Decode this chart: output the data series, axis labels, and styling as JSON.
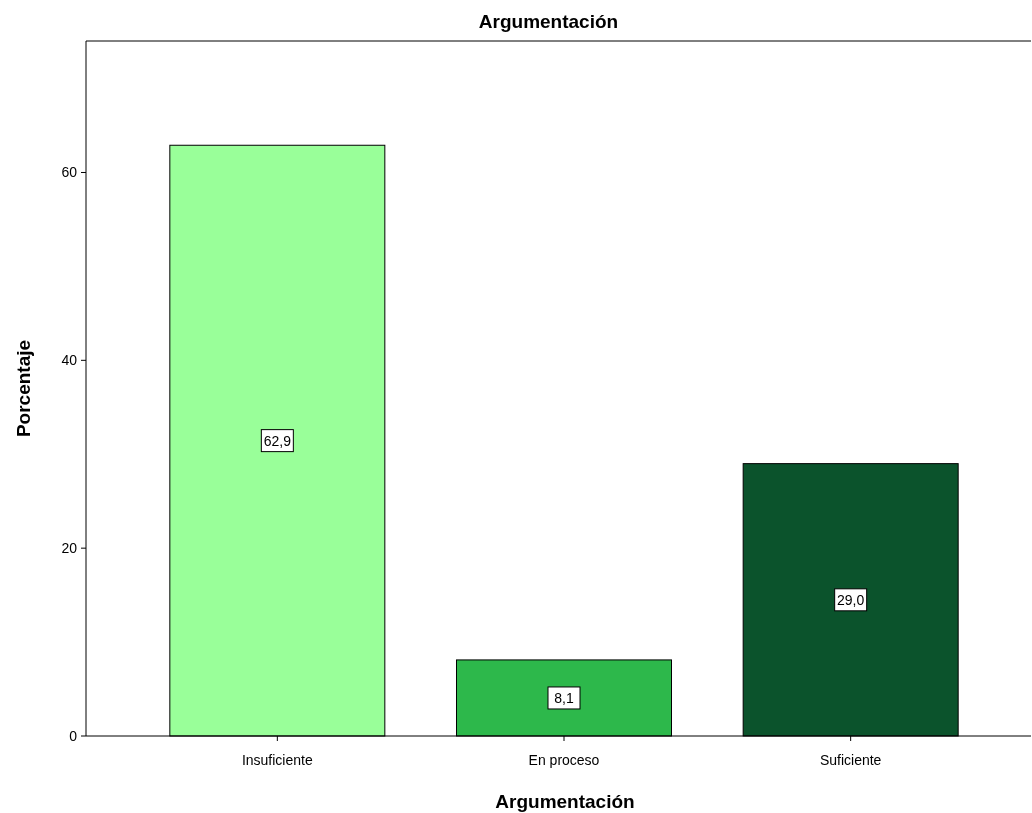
{
  "chart_data": {
    "type": "bar",
    "title": "Argumentación",
    "xlabel": "Argumentación",
    "ylabel": "Porcentaje",
    "categories": [
      "Insuficiente",
      "En proceso",
      "Suficiente"
    ],
    "values": [
      62.9,
      8.1,
      29.0
    ],
    "colors": [
      "#99ff99",
      "#2db84b",
      "#0b532c"
    ],
    "value_labels": [
      "62,9",
      "8,1",
      "29,0"
    ],
    "ylim": [
      0,
      74
    ],
    "yticks": [
      0,
      20,
      40,
      60
    ],
    "grid": false
  }
}
